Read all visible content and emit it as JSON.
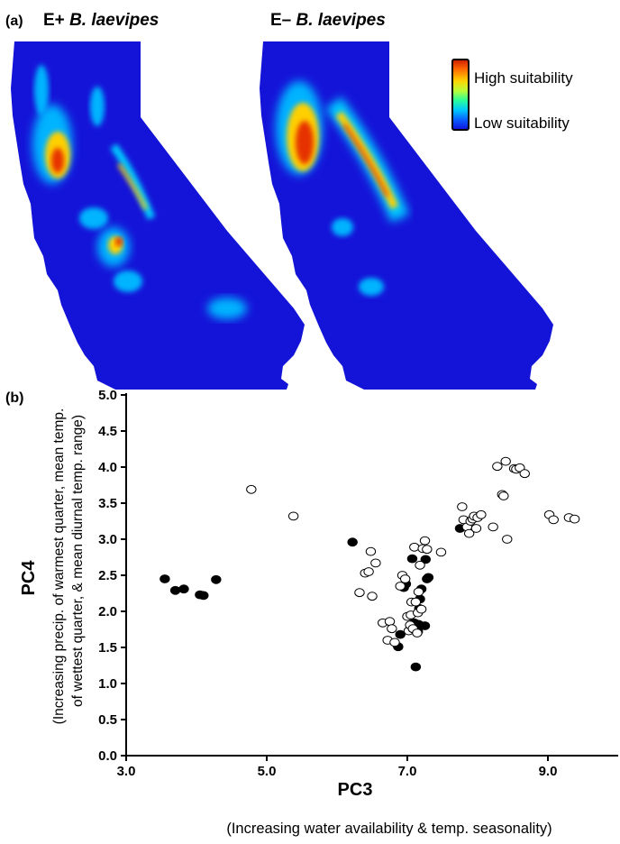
{
  "panel_a": {
    "label": "(a)",
    "map_left_title": {
      "prefix": "E+ ",
      "species": "B. laevipes"
    },
    "map_right_title": {
      "prefix": "E– ",
      "species": "B. laevipes"
    },
    "legend": {
      "high": "High suitability",
      "low": "Low suitability",
      "gradient_colors": [
        "#cc1a00",
        "#ff6a00",
        "#ffd200",
        "#b6ff3a",
        "#2aff9a",
        "#00c8ff",
        "#0a5cff",
        "#1010d8"
      ]
    },
    "map_colors": {
      "base": "#1414d8",
      "mid": "#00b4ff",
      "high": "#ffd000",
      "peak": "#e63000"
    }
  },
  "panel_b": {
    "label": "(b)",
    "xlabel": "PC3",
    "xlabel_note": "(Increasing water availability & temp. seasonality)",
    "ylabel": "PC4",
    "ylabel_note_line1": "(Increasing precip. of warmest quarter, mean temp.",
    "ylabel_note_line2": "of wettest quarter, & mean diurnal temp. range)"
  },
  "chart_data": {
    "type": "scatter",
    "xlabel": "PC3",
    "ylabel": "PC4",
    "xlim": [
      3.0,
      10.0
    ],
    "ylim": [
      0.0,
      5.0
    ],
    "xticks": [
      "3.0",
      "5.0",
      "7.0",
      "9.0"
    ],
    "xtick_values": [
      3.0,
      5.0,
      7.0,
      9.0
    ],
    "yticks": [
      "0.0",
      "0.5",
      "1.0",
      "1.5",
      "2.0",
      "2.5",
      "3.0",
      "3.5",
      "4.0",
      "4.5",
      "5.0"
    ],
    "ytick_values": [
      0.0,
      0.5,
      1.0,
      1.5,
      2.0,
      2.5,
      3.0,
      3.5,
      4.0,
      4.5,
      5.0
    ],
    "grid": false,
    "series": [
      {
        "marker": "filled",
        "points": [
          [
            3.55,
            2.45
          ],
          [
            3.7,
            2.29
          ],
          [
            3.82,
            2.31
          ],
          [
            4.05,
            2.23
          ],
          [
            4.1,
            2.22
          ],
          [
            4.28,
            2.44
          ],
          [
            6.22,
            2.96
          ],
          [
            6.87,
            1.51
          ],
          [
            6.9,
            1.68
          ],
          [
            6.95,
            2.33
          ],
          [
            6.98,
            2.38
          ],
          [
            7.05,
            1.79
          ],
          [
            7.07,
            2.73
          ],
          [
            7.1,
            1.84
          ],
          [
            7.12,
            1.23
          ],
          [
            7.15,
            1.72
          ],
          [
            7.16,
            1.82
          ],
          [
            7.17,
            2.04
          ],
          [
            7.18,
            2.17
          ],
          [
            7.2,
            2.31
          ],
          [
            7.25,
            1.8
          ],
          [
            7.26,
            2.72
          ],
          [
            7.28,
            2.45
          ],
          [
            7.3,
            2.47
          ],
          [
            7.75,
            3.15
          ]
        ]
      },
      {
        "marker": "open",
        "points": [
          [
            4.78,
            3.69
          ],
          [
            5.38,
            3.32
          ],
          [
            6.32,
            2.26
          ],
          [
            6.4,
            2.53
          ],
          [
            6.45,
            2.55
          ],
          [
            6.48,
            2.83
          ],
          [
            6.5,
            2.21
          ],
          [
            6.55,
            2.67
          ],
          [
            6.65,
            1.84
          ],
          [
            6.72,
            1.6
          ],
          [
            6.75,
            1.86
          ],
          [
            6.78,
            1.76
          ],
          [
            6.82,
            1.57
          ],
          [
            6.9,
            2.35
          ],
          [
            6.93,
            2.5
          ],
          [
            6.97,
            2.45
          ],
          [
            7.0,
            1.93
          ],
          [
            7.02,
            1.73
          ],
          [
            7.04,
            1.81
          ],
          [
            7.05,
            1.95
          ],
          [
            7.06,
            2.13
          ],
          [
            7.08,
            1.76
          ],
          [
            7.1,
            2.89
          ],
          [
            7.12,
            2.13
          ],
          [
            7.14,
            1.7
          ],
          [
            7.15,
            1.98
          ],
          [
            7.16,
            2.27
          ],
          [
            7.18,
            2.64
          ],
          [
            7.2,
            2.03
          ],
          [
            7.22,
            2.87
          ],
          [
            7.25,
            2.98
          ],
          [
            7.28,
            2.86
          ],
          [
            7.48,
            2.82
          ],
          [
            7.78,
            3.45
          ],
          [
            7.8,
            3.27
          ],
          [
            7.85,
            3.17
          ],
          [
            7.88,
            3.08
          ],
          [
            7.9,
            3.25
          ],
          [
            7.93,
            3.28
          ],
          [
            7.95,
            3.32
          ],
          [
            7.98,
            3.15
          ],
          [
            8.0,
            3.3
          ],
          [
            8.05,
            3.34
          ],
          [
            8.22,
            3.17
          ],
          [
            8.28,
            4.01
          ],
          [
            8.35,
            3.62
          ],
          [
            8.37,
            3.6
          ],
          [
            8.4,
            4.08
          ],
          [
            8.42,
            3.0
          ],
          [
            8.52,
            3.98
          ],
          [
            8.55,
            3.97
          ],
          [
            8.6,
            3.99
          ],
          [
            8.67,
            3.91
          ],
          [
            9.02,
            3.34
          ],
          [
            9.08,
            3.27
          ],
          [
            9.3,
            3.3
          ],
          [
            9.38,
            3.28
          ]
        ]
      }
    ]
  }
}
